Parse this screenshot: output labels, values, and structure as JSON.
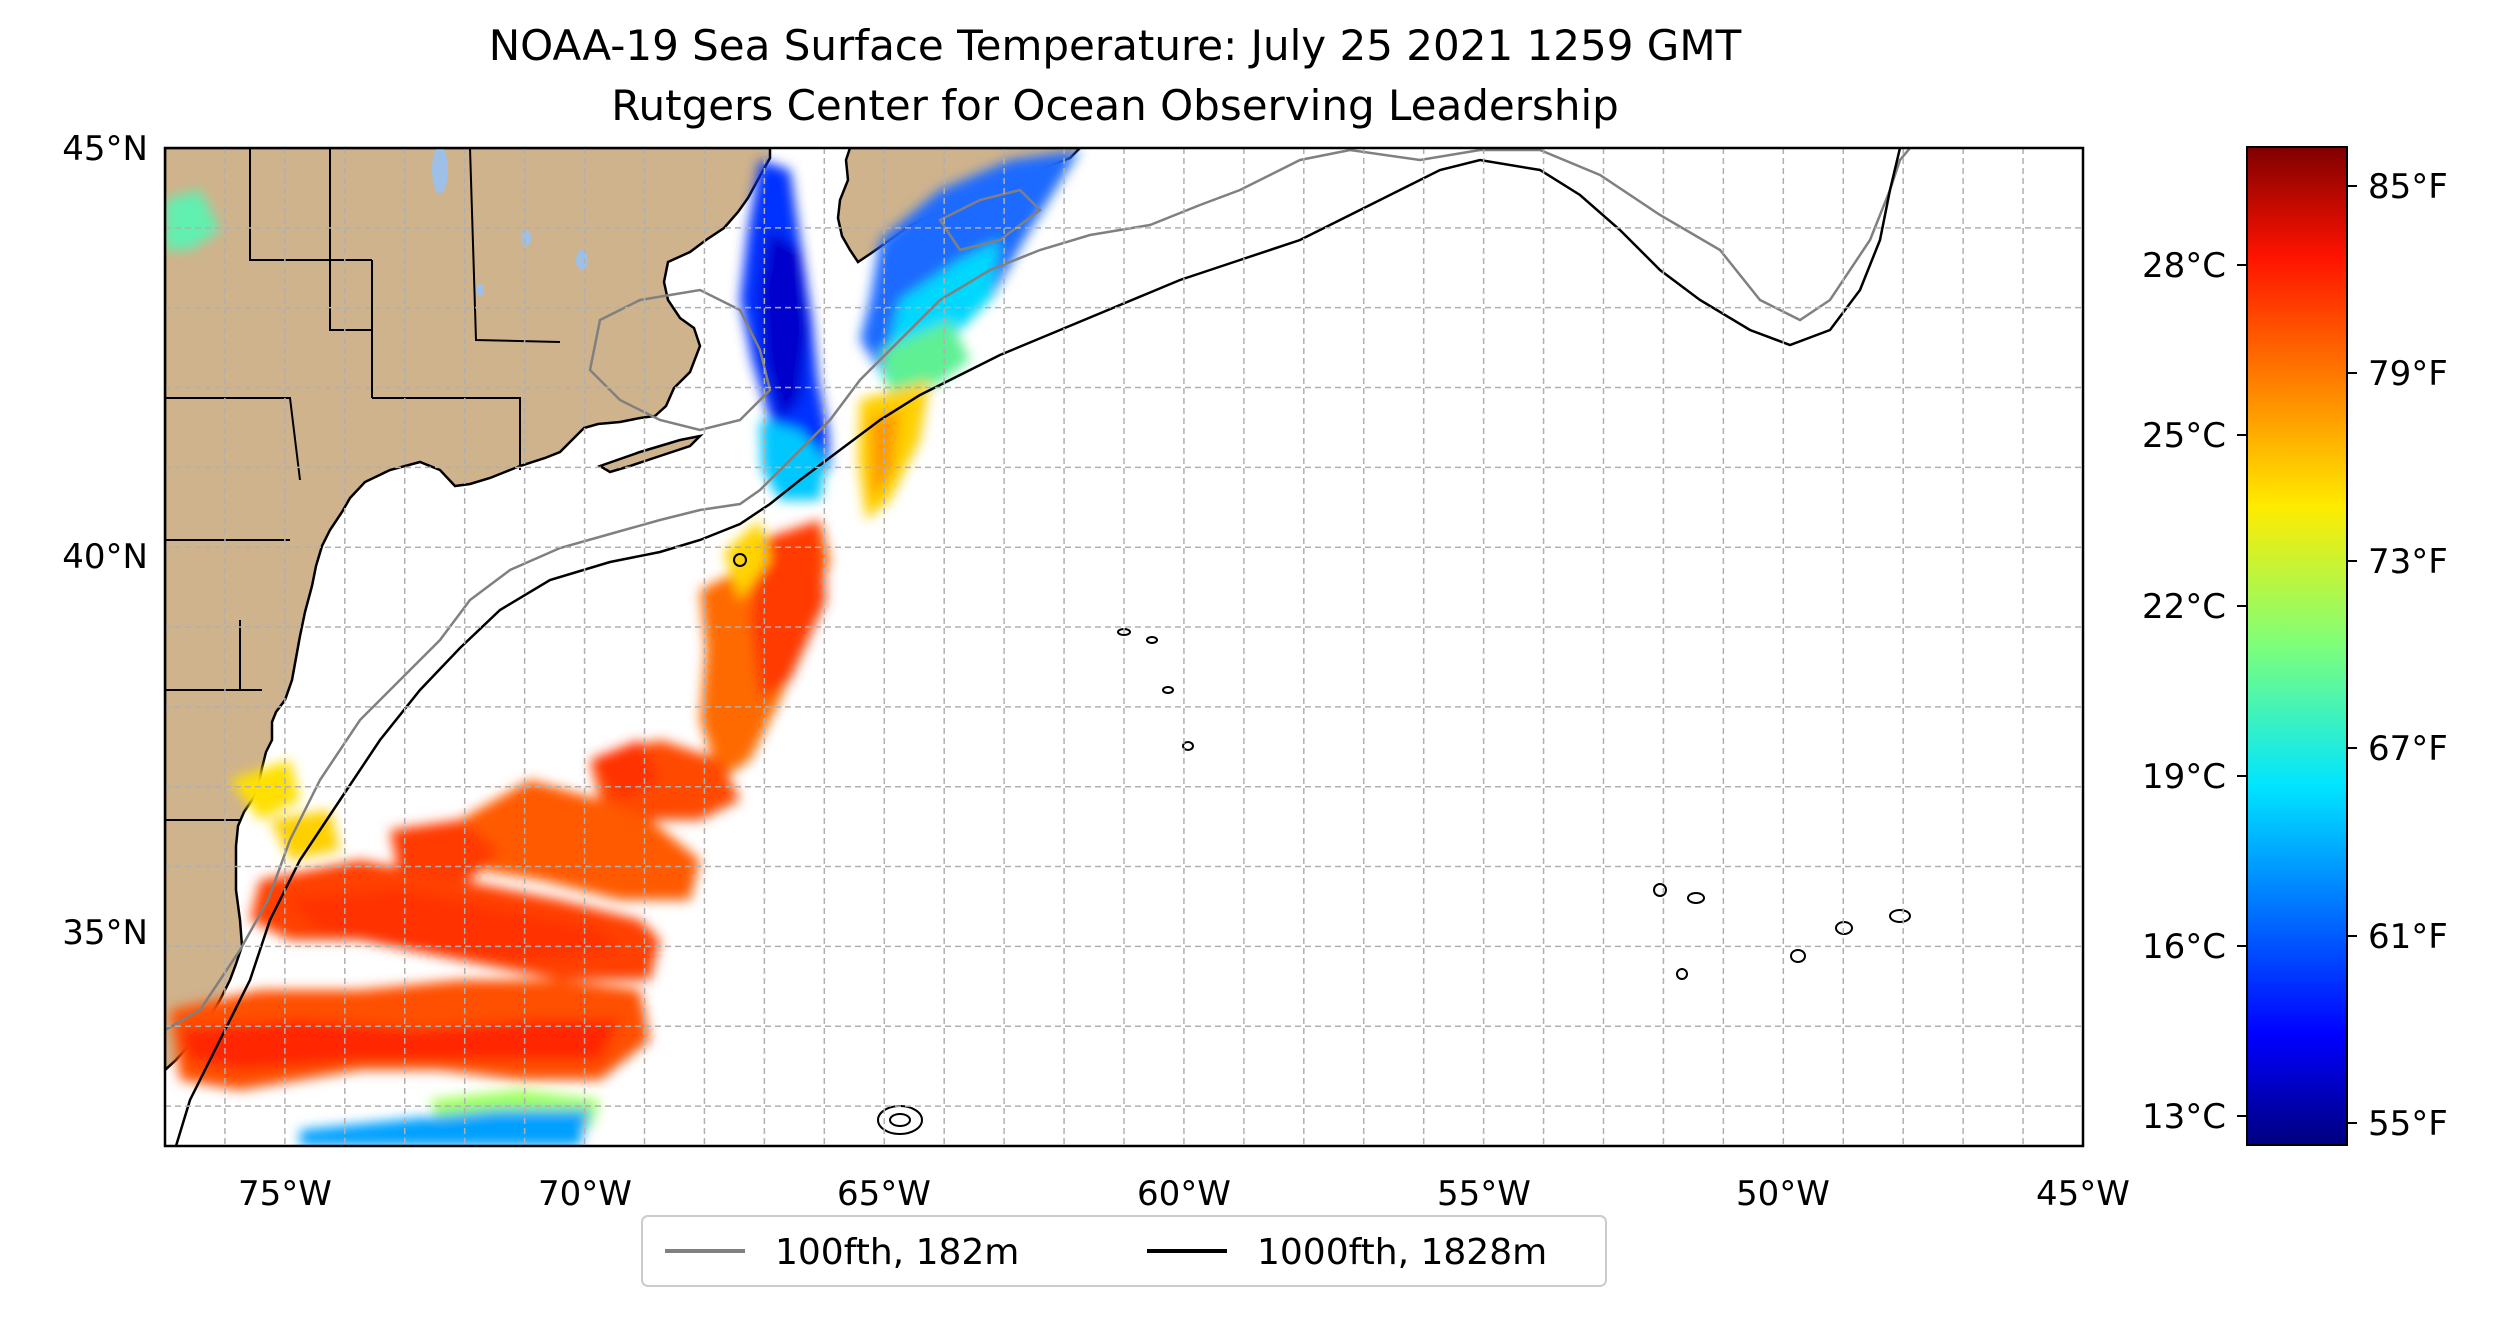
{
  "title": "NOAA-19 Sea Surface Temperature: July 25 2021 1259 GMT",
  "subtitle": "Rutgers Center for Ocean Observing Leadership",
  "map": {
    "lon_range": [
      -77,
      -45
    ],
    "lat_range": [
      32.5,
      45
    ],
    "lon_ticks": [
      "75°W",
      "70°W",
      "65°W",
      "60°W",
      "55°W",
      "50°W",
      "45°W"
    ],
    "lat_ticks": [
      "45°N",
      "40°N",
      "35°N"
    ],
    "grid": true,
    "land_color": "#cfb38c",
    "ocean_color": "#ffffff"
  },
  "colorbar": {
    "colormap": "jet",
    "celsius_labels": [
      "28°C",
      "25°C",
      "22°C",
      "19°C",
      "16°C",
      "13°C"
    ],
    "fahrenheit_labels": [
      "85°F",
      "79°F",
      "73°F",
      "67°F",
      "61°F",
      "55°F"
    ],
    "range_f": [
      54.5,
      86.5
    ]
  },
  "legend": {
    "items": [
      {
        "label": "100fth, 182m",
        "color": "#808080"
      },
      {
        "label": "1000fth, 1828m",
        "color": "#000000"
      }
    ],
    "placement": "bottom-center"
  }
}
